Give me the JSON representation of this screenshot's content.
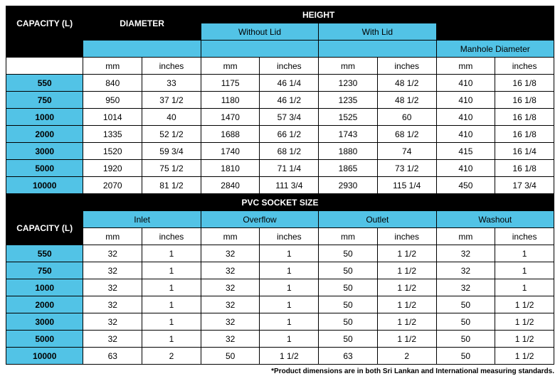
{
  "colors": {
    "header_bg": "#000000",
    "header_fg": "#ffffff",
    "accent_bg": "#52c3e6",
    "accent_fg": "#000000",
    "cell_bg": "#ffffff",
    "border": "#000000"
  },
  "table1": {
    "col_capacity": "CAPACITY (L)",
    "col_diameter": "DIAMETER",
    "col_height": "HEIGHT",
    "sub_without_lid": "Without Lid",
    "sub_with_lid": "With Lid",
    "sub_manhole": "Manhole Diameter",
    "unit_mm": "mm",
    "unit_in": "inches",
    "rows": [
      {
        "cap": "550",
        "d_mm": "840",
        "d_in": "33",
        "wl_mm": "1175",
        "wl_in": "46 1/4",
        "l_mm": "1230",
        "l_in": "48 1/2",
        "m_mm": "410",
        "m_in": "16 1/8"
      },
      {
        "cap": "750",
        "d_mm": "950",
        "d_in": "37 1/2",
        "wl_mm": "1180",
        "wl_in": "46 1/2",
        "l_mm": "1235",
        "l_in": "48 1/2",
        "m_mm": "410",
        "m_in": "16 1/8"
      },
      {
        "cap": "1000",
        "d_mm": "1014",
        "d_in": "40",
        "wl_mm": "1470",
        "wl_in": "57 3/4",
        "l_mm": "1525",
        "l_in": "60",
        "m_mm": "410",
        "m_in": "16 1/8"
      },
      {
        "cap": "2000",
        "d_mm": "1335",
        "d_in": "52 1/2",
        "wl_mm": "1688",
        "wl_in": "66 1/2",
        "l_mm": "1743",
        "l_in": "68 1/2",
        "m_mm": "410",
        "m_in": "16 1/8"
      },
      {
        "cap": "3000",
        "d_mm": "1520",
        "d_in": "59 3/4",
        "wl_mm": "1740",
        "wl_in": "68 1/2",
        "l_mm": "1880",
        "l_in": "74",
        "m_mm": "415",
        "m_in": "16 1/4"
      },
      {
        "cap": "5000",
        "d_mm": "1920",
        "d_in": "75 1/2",
        "wl_mm": "1810",
        "wl_in": "71 1/4",
        "l_mm": "1865",
        "l_in": "73 1/2",
        "m_mm": "410",
        "m_in": "16 1/8"
      },
      {
        "cap": "10000",
        "d_mm": "2070",
        "d_in": "81 1/2",
        "wl_mm": "2840",
        "wl_in": "111 3/4",
        "l_mm": "2930",
        "l_in": "115 1/4",
        "m_mm": "450",
        "m_in": "17 3/4"
      }
    ]
  },
  "table2": {
    "title": "PVC SOCKET SIZE",
    "col_capacity": "CAPACITY (L)",
    "sub_inlet": "Inlet",
    "sub_overflow": "Overflow",
    "sub_outlet": "Outlet",
    "sub_washout": "Washout",
    "unit_mm": "mm",
    "unit_in": "inches",
    "rows": [
      {
        "cap": "550",
        "i_mm": "32",
        "i_in": "1",
        "o_mm": "32",
        "o_in": "1",
        "out_mm": "50",
        "out_in": "1 1/2",
        "w_mm": "32",
        "w_in": "1"
      },
      {
        "cap": "750",
        "i_mm": "32",
        "i_in": "1",
        "o_mm": "32",
        "o_in": "1",
        "out_mm": "50",
        "out_in": "1 1/2",
        "w_mm": "32",
        "w_in": "1"
      },
      {
        "cap": "1000",
        "i_mm": "32",
        "i_in": "1",
        "o_mm": "32",
        "o_in": "1",
        "out_mm": "50",
        "out_in": "1 1/2",
        "w_mm": "32",
        "w_in": "1"
      },
      {
        "cap": "2000",
        "i_mm": "32",
        "i_in": "1",
        "o_mm": "32",
        "o_in": "1",
        "out_mm": "50",
        "out_in": "1 1/2",
        "w_mm": "50",
        "w_in": "1 1/2"
      },
      {
        "cap": "3000",
        "i_mm": "32",
        "i_in": "1",
        "o_mm": "32",
        "o_in": "1",
        "out_mm": "50",
        "out_in": "1 1/2",
        "w_mm": "50",
        "w_in": "1 1/2"
      },
      {
        "cap": "5000",
        "i_mm": "32",
        "i_in": "1",
        "o_mm": "32",
        "o_in": "1",
        "out_mm": "50",
        "out_in": "1 1/2",
        "w_mm": "50",
        "w_in": "1 1/2"
      },
      {
        "cap": "10000",
        "i_mm": "63",
        "i_in": "2",
        "o_mm": "50",
        "o_in": "1 1/2",
        "out_mm": "63",
        "out_in": "2",
        "w_mm": "50",
        "w_in": "1 1/2"
      }
    ]
  },
  "footnote": "*Product dimensions are in both Sri Lankan and International measuring standards."
}
